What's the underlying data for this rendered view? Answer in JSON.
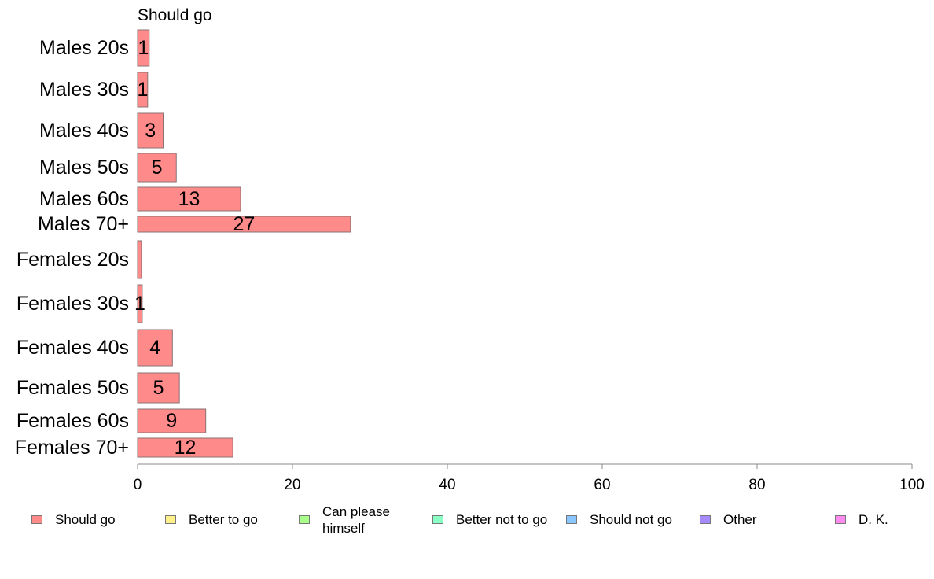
{
  "chart_data": {
    "type": "bar",
    "orientation": "horizontal",
    "title": "Should go",
    "categories": [
      "Males 20s",
      "Males 30s",
      "Males 40s",
      "Males 50s",
      "Males 60s",
      "Males 70+",
      "Females 20s",
      "Females 30s",
      "Females 40s",
      "Females 50s",
      "Females 60s",
      "Females 70+"
    ],
    "series": [
      {
        "name": "Should go",
        "values": [
          1.5,
          1.3,
          3.3,
          5.0,
          13.3,
          27.5,
          0.5,
          0.6,
          4.5,
          5.4,
          8.8,
          12.3
        ],
        "labels": [
          "1",
          "1",
          "3",
          "5",
          "13",
          "27",
          "",
          "1",
          "4",
          "5",
          "9",
          "12"
        ]
      }
    ],
    "xlim": [
      0,
      100
    ],
    "xticks": [
      "0",
      "20",
      "40",
      "60",
      "80",
      "100"
    ],
    "grid": false
  },
  "legend": [
    {
      "label": "Should go",
      "color": "#ff8a8a"
    },
    {
      "label": "Better to go",
      "color": "#fff08a"
    },
    {
      "label": "Can please himself",
      "color": "#a8ff8a"
    },
    {
      "label": "Better not to go",
      "color": "#8affc6"
    },
    {
      "label": "Should not go",
      "color": "#8ac6ff"
    },
    {
      "label": "Other",
      "color": "#a68aff"
    },
    {
      "label": "D. K.",
      "color": "#ff8af0"
    }
  ]
}
